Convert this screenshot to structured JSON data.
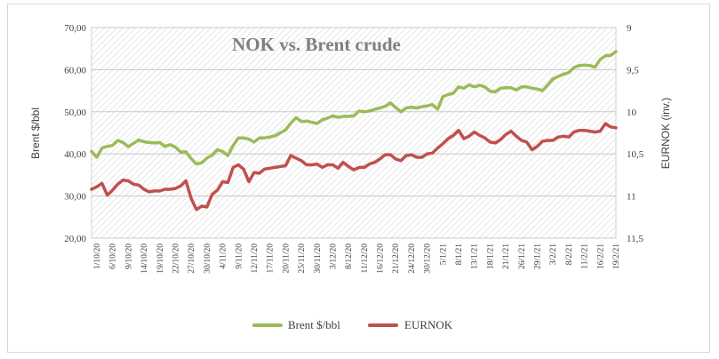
{
  "chart_data": {
    "type": "line",
    "title": "NOK vs. Brent crude",
    "ylabel": "Brent $/bbl",
    "y2label": "EURNOK (inv.)",
    "ylim": [
      20,
      70
    ],
    "y2lim": [
      9,
      11.5
    ],
    "y2_inverted": true,
    "y_ticks": [
      "20,00",
      "30,00",
      "40,00",
      "50,00",
      "60,00",
      "70,00"
    ],
    "y2_ticks": [
      "9",
      "9,5",
      "10",
      "10,5",
      "11",
      "11,5"
    ],
    "x_tick_labels": [
      "1/10/20",
      "6/10/20",
      "9/10/20",
      "14/10/20",
      "19/10/20",
      "22/10/20",
      "27/10/20",
      "30/10/20",
      "4/11/20",
      "9/11/20",
      "12/11/20",
      "17/11/20",
      "20/11/20",
      "25/11/20",
      "30/11/20",
      "3/12/20",
      "8/12/20",
      "11/12/20",
      "16/12/20",
      "21/12/20",
      "24/12/20",
      "30/12/20",
      "5/1/21",
      "8/1/21",
      "13/1/21",
      "18/1/21",
      "21/1/21",
      "26/1/21",
      "29/1/21",
      "3/2/21",
      "8/2/21",
      "11/2/21",
      "16/2/21",
      "19/2/21"
    ],
    "grid": "hatched",
    "legend_position": "bottom",
    "series": [
      {
        "name": "Brent $/bbl",
        "axis": "left",
        "color": "#9bbb59",
        "values": [
          40.6,
          39.2,
          41.4,
          41.8,
          42.0,
          43.2,
          42.7,
          41.7,
          42.5,
          43.3,
          42.9,
          42.7,
          42.6,
          42.7,
          41.8,
          42.2,
          41.6,
          40.4,
          40.5,
          38.9,
          37.6,
          37.9,
          39.0,
          39.7,
          41.0,
          40.6,
          39.6,
          42.0,
          43.8,
          43.8,
          43.5,
          42.8,
          43.8,
          43.8,
          44.0,
          44.3,
          45.0,
          45.7,
          47.3,
          48.6,
          47.7,
          47.8,
          47.5,
          47.2,
          48.1,
          48.5,
          49.0,
          48.7,
          48.9,
          48.9,
          49.0,
          50.2,
          50.0,
          50.2,
          50.6,
          50.9,
          51.3,
          52.1,
          51.0,
          50.0,
          50.9,
          51.1,
          50.9,
          51.2,
          51.4,
          51.7,
          50.6,
          53.6,
          54.1,
          54.4,
          55.9,
          55.6,
          56.4,
          55.9,
          56.3,
          55.9,
          54.9,
          54.7,
          55.6,
          55.7,
          55.7,
          55.2,
          55.9,
          55.9,
          55.6,
          55.4,
          55.0,
          56.4,
          57.8,
          58.4,
          58.9,
          59.3,
          60.5,
          61.0,
          61.1,
          61.0,
          60.6,
          62.4,
          63.3,
          63.4,
          64.3
        ]
      },
      {
        "name": "EURNOK",
        "axis": "right",
        "color": "#c0504d",
        "values": [
          10.92,
          10.89,
          10.85,
          10.99,
          10.93,
          10.86,
          10.81,
          10.82,
          10.86,
          10.87,
          10.92,
          10.95,
          10.94,
          10.94,
          10.92,
          10.92,
          10.91,
          10.88,
          10.82,
          11.03,
          11.16,
          11.12,
          11.13,
          10.98,
          10.93,
          10.83,
          10.84,
          10.66,
          10.63,
          10.68,
          10.83,
          10.72,
          10.73,
          10.68,
          10.67,
          10.66,
          10.65,
          10.64,
          10.52,
          10.55,
          10.58,
          10.63,
          10.63,
          10.62,
          10.66,
          10.63,
          10.63,
          10.67,
          10.6,
          10.65,
          10.69,
          10.66,
          10.66,
          10.62,
          10.6,
          10.56,
          10.51,
          10.51,
          10.56,
          10.58,
          10.52,
          10.51,
          10.54,
          10.54,
          10.5,
          10.49,
          10.43,
          10.38,
          10.32,
          10.28,
          10.22,
          10.32,
          10.29,
          10.24,
          10.28,
          10.31,
          10.36,
          10.37,
          10.33,
          10.27,
          10.23,
          10.29,
          10.34,
          10.36,
          10.45,
          10.41,
          10.35,
          10.34,
          10.34,
          10.3,
          10.29,
          10.3,
          10.24,
          10.22,
          10.22,
          10.23,
          10.24,
          10.23,
          10.14,
          10.18,
          10.19
        ]
      }
    ]
  }
}
